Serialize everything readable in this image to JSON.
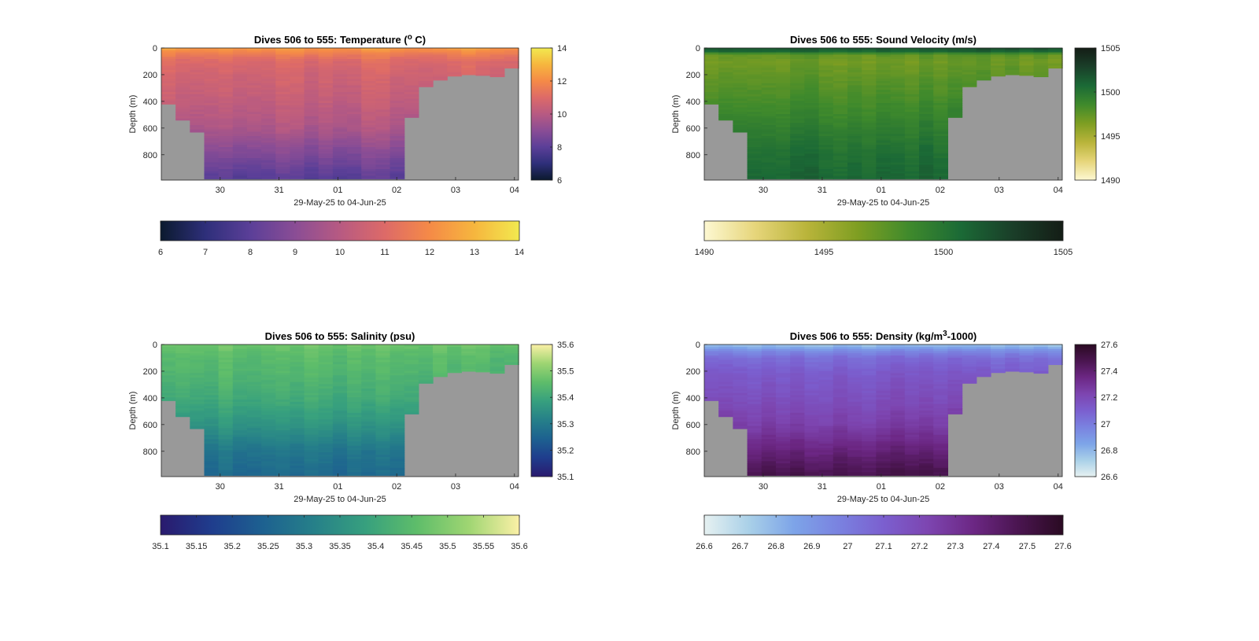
{
  "figure": {
    "panels": [
      {
        "id": "temperature",
        "title_main": "Dives 506 to 555: Temperature (",
        "title_sup": "o",
        "title_tail": " C)",
        "ylabel": "Depth (m)",
        "xlabel": "29-May-25 to 04-Jun-25",
        "yticks": [
          "0",
          "200",
          "400",
          "600",
          "800"
        ],
        "xticks": [
          "30",
          "31",
          "01",
          "02",
          "03",
          "04"
        ],
        "cbar_right_ticks": [
          "14",
          "12",
          "10",
          "8",
          "6"
        ],
        "cbar_bottom_ticks": [
          "6",
          "7",
          "8",
          "9",
          "10",
          "11",
          "12",
          "13",
          "14"
        ],
        "colormap": [
          "#0b1a2e",
          "#2e2f7a",
          "#5b3f98",
          "#8a4d95",
          "#b75a82",
          "#dd6a68",
          "#f58a47",
          "#f6b63e",
          "#f2e94f"
        ],
        "clim": [
          6,
          14
        ]
      },
      {
        "id": "sound_velocity",
        "title_main": "Dives 506 to 555: Sound Velocity (m/s)",
        "title_sup": "",
        "title_tail": "",
        "ylabel": "Depth (m)",
        "xlabel": "29-May-25 to 04-Jun-25",
        "yticks": [
          "0",
          "200",
          "400",
          "600",
          "800"
        ],
        "xticks": [
          "30",
          "31",
          "01",
          "02",
          "03",
          "04"
        ],
        "cbar_right_ticks": [
          "1505",
          "1500",
          "1495",
          "1490"
        ],
        "cbar_bottom_ticks": [
          "1490",
          "1495",
          "1500",
          "1505"
        ],
        "colormap": [
          "#fdf8d2",
          "#e6d57a",
          "#b9b43a",
          "#7e9e22",
          "#3f8a2c",
          "#1b6a36",
          "#1a3f29",
          "#141d16"
        ],
        "clim": [
          1490,
          1505
        ]
      },
      {
        "id": "salinity",
        "title_main": "Dives 506 to 555: Salinity (psu)",
        "title_sup": "",
        "title_tail": "",
        "ylabel": "Depth (m)",
        "xlabel": "29-May-25 to 04-Jun-25",
        "yticks": [
          "0",
          "200",
          "400",
          "600",
          "800"
        ],
        "xticks": [
          "30",
          "31",
          "01",
          "02",
          "03",
          "04"
        ],
        "cbar_right_ticks": [
          "35.6",
          "35.5",
          "35.4",
          "35.3",
          "35.2",
          "35.1"
        ],
        "cbar_bottom_ticks": [
          "35.1",
          "35.15",
          "35.2",
          "35.25",
          "35.3",
          "35.35",
          "35.4",
          "35.45",
          "35.5",
          "35.55",
          "35.6"
        ],
        "colormap": [
          "#2a1a6e",
          "#1f3d8d",
          "#1d6190",
          "#268089",
          "#37a07e",
          "#5ebd6a",
          "#9ed572",
          "#fbf0a6"
        ],
        "clim": [
          35.1,
          35.6
        ]
      },
      {
        "id": "density",
        "title_main": "Dives 506 to 555: Density (kg/m",
        "title_sup": "3",
        "title_tail": "-1000)",
        "ylabel": "Depth (m)",
        "xlabel": "29-May-25 to 04-Jun-25",
        "yticks": [
          "0",
          "200",
          "400",
          "600",
          "800"
        ],
        "xticks": [
          "30",
          "31",
          "01",
          "02",
          "03",
          "04"
        ],
        "cbar_right_ticks": [
          "27.6",
          "27.4",
          "27.2",
          "27",
          "26.8",
          "26.6"
        ],
        "cbar_bottom_ticks": [
          "26.6",
          "26.7",
          "26.8",
          "26.9",
          "27",
          "27.1",
          "27.2",
          "27.3",
          "27.4",
          "27.5",
          "27.6"
        ],
        "colormap": [
          "#e6f1f1",
          "#a9d0e8",
          "#7da4e8",
          "#7a82e0",
          "#7b5fcf",
          "#7d45b0",
          "#6c2784",
          "#4a1550",
          "#2a0a22"
        ],
        "clim": [
          26.6,
          27.6
        ]
      }
    ],
    "mask_color": "#999999"
  },
  "chart_data": [
    {
      "type": "heatmap",
      "title": "Dives 506 to 555: Temperature (o C)",
      "xlabel": "29-May-25 to 04-Jun-25",
      "ylabel": "Depth (m)",
      "x_range": [
        "29-May-25",
        "04-Jun-25"
      ],
      "y_range": [
        0,
        990
      ],
      "y_reversed": true,
      "colorbar_range": [
        6,
        14
      ],
      "profile_x": [
        "29-May 02:00",
        "29-May 08:00",
        "29-May 14:00",
        "29-May 20:00",
        "30-May 02:00",
        "30-May 08:00",
        "30-May 14:00",
        "30-May 20:00",
        "31-May 02:00",
        "31-May 08:00",
        "31-May 14:00",
        "31-May 20:00",
        "01-Jun 02:00",
        "01-Jun 08:00",
        "01-Jun 14:00",
        "01-Jun 20:00",
        "02-Jun 02:00",
        "02-Jun 08:00",
        "02-Jun 14:00",
        "02-Jun 20:00",
        "03-Jun 02:00",
        "03-Jun 08:00",
        "03-Jun 14:00",
        "03-Jun 20:00",
        "04-Jun 02:00"
      ],
      "max_depth_m": [
        420,
        540,
        630,
        980,
        980,
        980,
        980,
        980,
        980,
        980,
        980,
        980,
        980,
        980,
        980,
        980,
        980,
        520,
        290,
        240,
        210,
        200,
        205,
        215,
        150
      ],
      "profile_depth_m": [
        0,
        25,
        50,
        100,
        200,
        400,
        600,
        800,
        990
      ],
      "temperature_profile_C": [
        12.5,
        12.0,
        11.6,
        11.0,
        10.7,
        10.3,
        9.8,
        8.8,
        7.9
      ]
    },
    {
      "type": "heatmap",
      "title": "Dives 506 to 555: Sound Velocity (m/s)",
      "xlabel": "29-May-25 to 04-Jun-25",
      "ylabel": "Depth (m)",
      "x_range": [
        "29-May-25",
        "04-Jun-25"
      ],
      "y_range": [
        0,
        990
      ],
      "y_reversed": true,
      "colorbar_range": [
        1490,
        1505
      ],
      "profile_depth_m": [
        0,
        25,
        50,
        100,
        200,
        400,
        600,
        800,
        990
      ],
      "sound_velocity_profile_ms": [
        1502.0,
        1501.0,
        1497.5,
        1497.0,
        1497.5,
        1498.5,
        1499.5,
        1500.5,
        1501.0
      ]
    },
    {
      "type": "heatmap",
      "title": "Dives 506 to 555: Salinity (psu)",
      "xlabel": "29-May-25 to 04-Jun-25",
      "ylabel": "Depth (m)",
      "x_range": [
        "29-May-25",
        "04-Jun-25"
      ],
      "y_range": [
        0,
        990
      ],
      "y_reversed": true,
      "colorbar_range": [
        35.1,
        35.6
      ],
      "profile_depth_m": [
        0,
        25,
        50,
        100,
        200,
        400,
        600,
        800,
        990
      ],
      "salinity_profile_psu": [
        35.48,
        35.47,
        35.46,
        35.45,
        35.44,
        35.41,
        35.36,
        35.29,
        35.26
      ]
    },
    {
      "type": "heatmap",
      "title": "Dives 506 to 555: Density (kg/m3-1000)",
      "xlabel": "29-May-25 to 04-Jun-25",
      "ylabel": "Depth (m)",
      "x_range": [
        "29-May-25",
        "04-Jun-25"
      ],
      "y_range": [
        0,
        990
      ],
      "y_reversed": true,
      "colorbar_range": [
        26.6,
        27.6
      ],
      "profile_depth_m": [
        0,
        25,
        50,
        100,
        200,
        400,
        600,
        800,
        990
      ],
      "density_profile_kgm3_minus_1000": [
        26.75,
        26.85,
        26.95,
        27.05,
        27.12,
        27.18,
        27.25,
        27.38,
        27.5
      ]
    }
  ]
}
